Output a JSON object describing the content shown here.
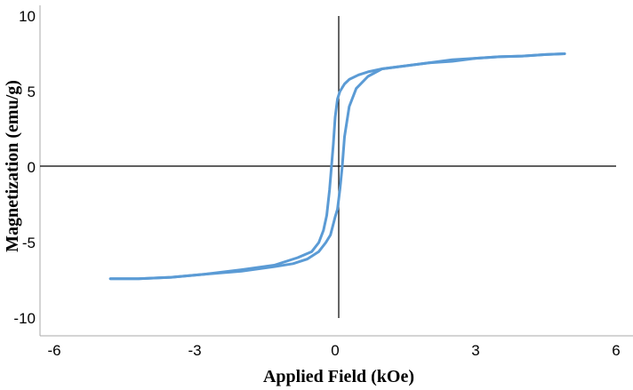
{
  "chart_data": {
    "type": "line",
    "title": "",
    "xlabel": "Applied Field (kOe)",
    "ylabel": "Magnetization (emu/g)",
    "xlim": [
      -6,
      6
    ],
    "ylim": [
      -10,
      10
    ],
    "x_ticks": [
      -6,
      -3,
      0,
      3,
      6
    ],
    "y_ticks": [
      -10,
      -5,
      0,
      5,
      10
    ],
    "x_tick_labels": [
      "-6",
      "-3",
      "0",
      "3",
      "6"
    ],
    "y_tick_labels": [
      "-10",
      "-5",
      "0",
      "5",
      "10"
    ],
    "grid": false,
    "legend": "none",
    "series_color": "#5B9BD5",
    "series": [
      {
        "x": [
          -4.8,
          -4.2,
          -3.5,
          -2.8,
          -2.0,
          -1.3,
          -0.8,
          -0.5,
          -0.35,
          -0.25,
          -0.18,
          -0.12,
          -0.08,
          -0.04,
          0.0,
          0.05,
          0.1,
          0.2,
          0.3,
          0.5,
          0.7,
          1.0,
          1.5,
          2.0,
          2.5,
          3.0,
          3.5,
          4.0,
          4.5,
          4.9
        ],
        "y": [
          -7.4,
          -7.4,
          -7.3,
          -7.1,
          -6.8,
          -6.5,
          -6.0,
          -5.6,
          -5.0,
          -4.2,
          -3.2,
          -1.5,
          0.0,
          1.5,
          3.3,
          4.5,
          5.0,
          5.5,
          5.8,
          6.1,
          6.3,
          6.5,
          6.7,
          6.9,
          7.1,
          7.2,
          7.3,
          7.35,
          7.45,
          7.5
        ]
      },
      {
        "x": [
          4.9,
          4.5,
          4.0,
          3.5,
          3.0,
          2.5,
          2.0,
          1.5,
          1.0,
          0.7,
          0.45,
          0.3,
          0.2,
          0.15,
          0.1,
          0.05,
          0.0,
          -0.1,
          -0.2,
          -0.35,
          -0.6,
          -0.9,
          -1.3,
          -2.0,
          -2.8,
          -3.5,
          -4.2,
          -4.8
        ],
        "y": [
          7.5,
          7.45,
          7.35,
          7.3,
          7.2,
          7.0,
          6.9,
          6.7,
          6.5,
          6.0,
          5.2,
          4.0,
          2.0,
          0.0,
          -1.5,
          -2.8,
          -3.3,
          -4.5,
          -5.0,
          -5.6,
          -6.1,
          -6.4,
          -6.6,
          -6.9,
          -7.1,
          -7.3,
          -7.4,
          -7.4
        ]
      }
    ]
  }
}
